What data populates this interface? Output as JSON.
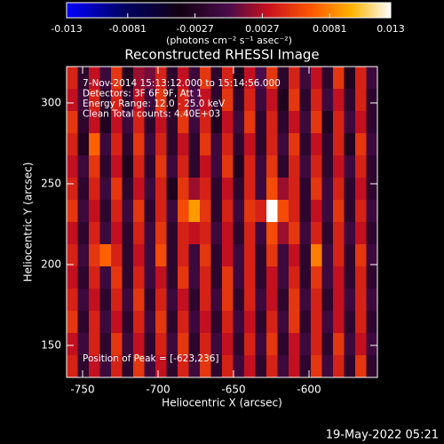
{
  "chart_data": {
    "type": "heatmap",
    "title": "Reconstructed RHESSI Image",
    "xlabel": "Heliocentric X (arcsec)",
    "ylabel": "Heliocentric Y (arcsec)",
    "xlim": [
      -760.6,
      -554.7
    ],
    "xticks": [
      -750,
      -700,
      -650,
      -600
    ],
    "ylim": [
      130.2,
      322.5
    ],
    "yticks": [
      150,
      200,
      250,
      300
    ],
    "clim": [
      -0.013,
      0.013
    ],
    "cticks": [
      -0.013,
      -0.0081,
      -0.0027,
      0.0027,
      0.0081,
      0.013
    ],
    "colorbar_label": "(photons cm⁻² s⁻¹ asec⁻²)",
    "colorscale": [
      [
        0,
        "#0000ff"
      ],
      [
        0.18,
        "#000060"
      ],
      [
        0.35,
        "#120012"
      ],
      [
        0.5,
        "#4a0c4a"
      ],
      [
        0.62,
        "#c8101e"
      ],
      [
        0.76,
        "#ff5a00"
      ],
      [
        0.88,
        "#ffb400"
      ],
      [
        1,
        "#ffffff"
      ]
    ],
    "info_lines": [
      "7-Nov-2014 15:13:12.000 to 15:14:56.000",
      "Detectors: 3F 6F 9F, Att 1",
      "Energy Range: 12.0 - 25.0 keV",
      "Clean    Total counts: 4.40E+03"
    ],
    "peak_label": "Position of Peak = [-623,236]",
    "timestamp": "19-May-2022 05:21",
    "z": [
      [
        0.004,
        -0.002,
        0.003,
        -0.001,
        0.005,
        -0.003,
        0.002,
        0.001,
        0.004,
        -0.002,
        0.003,
        -0.001,
        0.005,
        -0.002,
        0.004,
        -0.003,
        0.003,
        0.0,
        0.005,
        -0.002,
        0.004,
        -0.001,
        0.003,
        -0.002,
        0.005,
        -0.003,
        0.004,
        -0.001
      ],
      [
        0.003,
        -0.001,
        0.004,
        -0.002,
        0.004,
        -0.002,
        0.003,
        -0.001,
        0.005,
        -0.003,
        0.004,
        0.0,
        0.003,
        -0.002,
        0.005,
        -0.002,
        0.004,
        -0.001,
        0.003,
        -0.003,
        0.005,
        -0.002,
        0.004,
        -0.001,
        0.003,
        -0.002,
        0.004,
        -0.002
      ],
      [
        0.005,
        -0.002,
        0.003,
        -0.003,
        0.003,
        -0.001,
        0.004,
        -0.002,
        0.003,
        -0.002,
        0.005,
        -0.001,
        0.004,
        -0.003,
        0.003,
        -0.001,
        0.005,
        -0.002,
        0.004,
        -0.002,
        0.003,
        -0.001,
        0.005,
        -0.003,
        0.004,
        -0.001,
        0.003,
        -0.002
      ],
      [
        0.004,
        -0.003,
        0.007,
        -0.001,
        0.004,
        -0.002,
        0.005,
        -0.001,
        0.004,
        -0.002,
        0.003,
        -0.002,
        0.005,
        -0.001,
        0.004,
        -0.002,
        0.003,
        -0.002,
        0.004,
        -0.001,
        0.005,
        -0.002,
        0.003,
        -0.002,
        0.004,
        -0.003,
        0.005,
        -0.001
      ],
      [
        0.003,
        -0.001,
        0.005,
        -0.002,
        0.003,
        -0.003,
        0.004,
        -0.002,
        0.005,
        -0.001,
        0.004,
        -0.002,
        0.003,
        -0.001,
        0.005,
        -0.003,
        0.004,
        -0.001,
        0.005,
        -0.002,
        0.004,
        -0.001,
        0.004,
        -0.002,
        0.003,
        -0.001,
        0.004,
        -0.002
      ],
      [
        0.004,
        -0.002,
        0.004,
        -0.001,
        0.005,
        -0.002,
        0.003,
        -0.001,
        0.004,
        -0.003,
        0.005,
        0.002,
        0.004,
        -0.002,
        0.003,
        -0.002,
        0.004,
        -0.001,
        0.006,
        0.002,
        0.004,
        -0.002,
        0.005,
        -0.001,
        0.004,
        -0.002,
        0.003,
        -0.002
      ],
      [
        0.005,
        -0.001,
        0.003,
        -0.002,
        0.004,
        -0.001,
        0.005,
        -0.002,
        0.004,
        -0.001,
        0.006,
        0.009,
        0.005,
        -0.002,
        0.004,
        -0.001,
        0.005,
        0.004,
        0.013,
        0.006,
        0.004,
        -0.002,
        0.003,
        -0.001,
        0.005,
        -0.002,
        0.004,
        -0.001
      ],
      [
        0.003,
        -0.002,
        0.004,
        -0.001,
        0.003,
        -0.002,
        0.004,
        -0.001,
        0.005,
        -0.002,
        0.004,
        0.003,
        0.004,
        -0.001,
        0.003,
        -0.002,
        0.004,
        -0.001,
        0.006,
        0.002,
        0.005,
        -0.001,
        0.004,
        -0.002,
        0.004,
        -0.001,
        0.003,
        -0.002
      ],
      [
        0.004,
        -0.001,
        0.005,
        0.007,
        0.004,
        -0.002,
        0.003,
        -0.001,
        0.006,
        -0.002,
        0.004,
        -0.001,
        0.005,
        -0.002,
        0.003,
        -0.001,
        0.004,
        -0.002,
        0.005,
        -0.001,
        0.003,
        -0.002,
        0.008,
        -0.001,
        0.004,
        -0.002,
        0.005,
        -0.001
      ],
      [
        0.003,
        -0.002,
        0.004,
        -0.001,
        0.005,
        -0.002,
        0.004,
        -0.001,
        0.003,
        -0.002,
        0.005,
        -0.001,
        0.004,
        -0.002,
        0.005,
        -0.001,
        0.004,
        -0.002,
        0.003,
        -0.001,
        0.004,
        -0.002,
        0.005,
        -0.001,
        0.003,
        -0.002,
        0.004,
        -0.002
      ],
      [
        0.004,
        -0.001,
        0.003,
        -0.002,
        0.004,
        -0.001,
        0.005,
        -0.002,
        0.004,
        -0.001,
        0.003,
        -0.002,
        0.004,
        -0.001,
        0.005,
        -0.002,
        0.004,
        -0.001,
        0.003,
        -0.002,
        0.005,
        -0.001,
        0.004,
        -0.002,
        0.003,
        -0.001,
        0.004,
        -0.001
      ],
      [
        0.005,
        -0.002,
        0.004,
        -0.001,
        0.003,
        -0.002,
        0.004,
        -0.001,
        0.005,
        -0.002,
        0.004,
        -0.001,
        0.003,
        -0.002,
        0.004,
        -0.001,
        0.003,
        -0.002,
        0.004,
        -0.001,
        0.005,
        -0.002,
        0.004,
        -0.001,
        0.003,
        -0.002,
        0.004,
        -0.002
      ],
      [
        0.003,
        -0.001,
        0.004,
        -0.002,
        0.005,
        -0.001,
        0.003,
        -0.002,
        0.004,
        -0.001,
        0.005,
        -0.002,
        0.004,
        -0.001,
        0.003,
        -0.002,
        0.004,
        -0.001,
        0.005,
        -0.002,
        0.003,
        -0.001,
        0.004,
        -0.002,
        0.005,
        -0.001,
        0.003,
        -0.001
      ],
      [
        0.004,
        -0.002,
        0.003,
        -0.001,
        0.004,
        -0.002,
        0.005,
        -0.001,
        0.003,
        -0.002,
        0.004,
        -0.001,
        0.005,
        -0.002,
        0.004,
        -0.001,
        0.003,
        -0.002,
        0.004,
        -0.001,
        0.003,
        -0.002,
        0.005,
        -0.001,
        0.004,
        -0.002,
        0.005,
        -0.002
      ]
    ]
  }
}
